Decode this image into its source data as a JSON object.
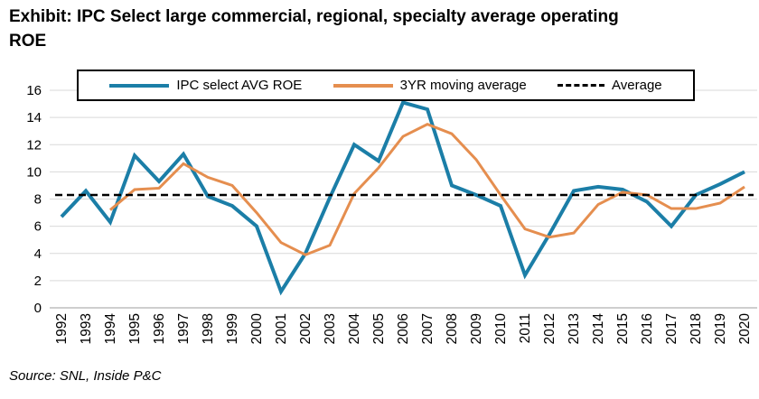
{
  "title_line1": "Exhibit: IPC Select large commercial, regional, specialty average operating",
  "title_line2": "ROE",
  "source_note": "Source: SNL, Inside P&C",
  "legend": {
    "items": [
      {
        "label": "IPC select AVG ROE",
        "color": "#1b7ea7",
        "style": "solid"
      },
      {
        "label": "3YR moving average",
        "color": "#e58e4f",
        "style": "solid"
      },
      {
        "label": "Average",
        "color": "#000000",
        "style": "dashed"
      }
    ]
  },
  "colors": {
    "grid": "#d9d9d9",
    "axis": "#9e9e9e",
    "tick_text": "#000000"
  },
  "chart_data": {
    "type": "line",
    "title": "Exhibit: IPC Select large commercial, regional, specialty average operating ROE",
    "xlabel": "",
    "ylabel": "",
    "ylim": [
      0,
      16
    ],
    "ytick_step": 2,
    "grid": true,
    "legend_position": "top",
    "x": [
      1992,
      1993,
      1994,
      1995,
      1996,
      1997,
      1998,
      1999,
      2000,
      2001,
      2002,
      2003,
      2004,
      2005,
      2006,
      2007,
      2008,
      2009,
      2010,
      2011,
      2012,
      2013,
      2014,
      2015,
      2016,
      2017,
      2018,
      2019,
      2020
    ],
    "series": [
      {
        "name": "IPC select AVG ROE",
        "color": "#1b7ea7",
        "width": 4,
        "values": [
          6.7,
          8.6,
          6.3,
          11.2,
          9.3,
          11.3,
          8.2,
          7.5,
          6.0,
          1.2,
          4.0,
          8.1,
          12.0,
          10.8,
          15.1,
          14.6,
          9.0,
          8.3,
          7.5,
          2.4,
          5.4,
          8.6,
          8.9,
          8.7,
          7.8,
          6.0,
          8.3,
          9.1,
          10.0
        ]
      },
      {
        "name": "3YR moving average",
        "color": "#e58e4f",
        "width": 3,
        "values": [
          null,
          null,
          7.2,
          8.7,
          8.8,
          10.6,
          9.6,
          9.0,
          7.0,
          4.8,
          3.9,
          4.6,
          8.4,
          10.3,
          12.6,
          13.5,
          12.8,
          10.9,
          8.3,
          5.8,
          5.2,
          5.5,
          7.6,
          8.5,
          8.3,
          7.3,
          7.3,
          7.7,
          8.9
        ]
      },
      {
        "name": "Average",
        "color": "#000000",
        "width": 2.5,
        "dashed": true,
        "value": 8.3
      }
    ]
  }
}
